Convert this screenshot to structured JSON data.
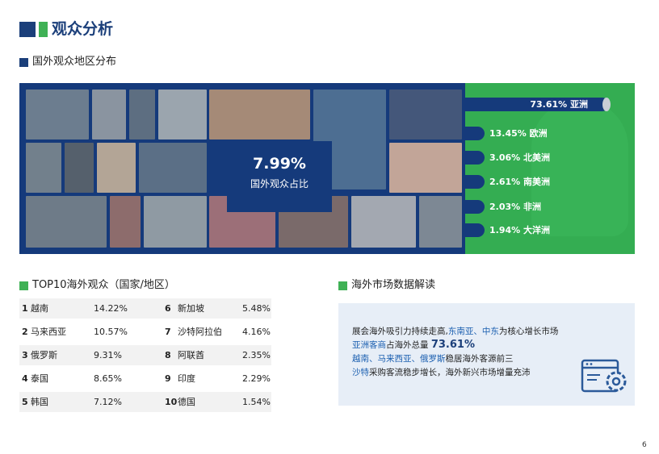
{
  "header": {
    "title": "观众分析"
  },
  "region_section": {
    "title": "国外观众地区分布",
    "stat_value": "7.99%",
    "stat_label": "国外观众占比",
    "bars": [
      {
        "label": "73.61% 亚洲",
        "value": 73.61
      },
      {
        "label": "13.45% 欧洲",
        "value": 13.45
      },
      {
        "label": "3.06% 北美洲",
        "value": 3.06
      },
      {
        "label": "2.61% 南美洲",
        "value": 2.61
      },
      {
        "label": "2.03% 非洲",
        "value": 2.03
      },
      {
        "label": "1.94% 大洋洲",
        "value": 1.94
      }
    ]
  },
  "top10": {
    "title": "TOP10海外观众（国家/地区）",
    "rows": [
      {
        "r1": "1",
        "c1": "越南",
        "v1": "14.22%",
        "r2": "6",
        "c2": "新加坡",
        "v2": "5.48%"
      },
      {
        "r1": "2",
        "c1": "马来西亚",
        "v1": "10.57%",
        "r2": "7",
        "c2": "沙特阿拉伯",
        "v2": "4.16%"
      },
      {
        "r1": "3",
        "c1": "俄罗斯",
        "v1": "9.31%",
        "r2": "8",
        "c2": "阿联酋",
        "v2": "2.35%"
      },
      {
        "r1": "4",
        "c1": "泰国",
        "v1": "8.65%",
        "r2": "9",
        "c2": "印度",
        "v2": "2.29%"
      },
      {
        "r1": "5",
        "c1": "韩国",
        "v1": "7.12%",
        "r2": "10",
        "c2": "德国",
        "v2": "1.54%"
      }
    ]
  },
  "insights": {
    "title": "海外市场数据解读",
    "line1_a": "展会海外吸引力持续走高,",
    "line1_b": "东南亚、中东",
    "line1_c": "为核心增长市场",
    "line2_a": "亚洲客商",
    "line2_b": "占海外总量",
    "line2_c": "73.61%",
    "line3_a": "越南、马来西亚、俄罗斯",
    "line3_b": "稳居海外客源前三",
    "line4_a": "沙特",
    "line4_b": "采购客流稳步增长，海外新兴市场增量充沛"
  },
  "page_number": "6",
  "colors": {
    "navy": "#1b3f7a",
    "green": "#3fb155",
    "banner": "#153a7b",
    "panel": "#34ad52"
  }
}
